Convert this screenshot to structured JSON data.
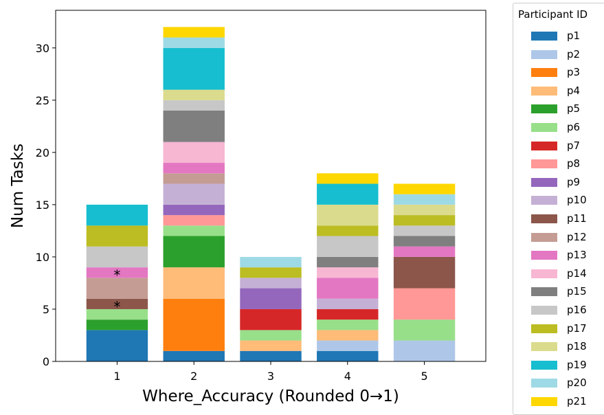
{
  "chart_data": {
    "type": "bar",
    "stacked": true,
    "xlabel": "Where_Accuracy (Rounded 0→1)",
    "ylabel": "Num Tasks",
    "categories": [
      "1",
      "2",
      "3",
      "4",
      "5"
    ],
    "ylim": [
      0,
      33.6
    ],
    "yticks": [
      0,
      5,
      10,
      15,
      20,
      25,
      30
    ],
    "legend_title": "Participant ID",
    "legend_position": "outside-right",
    "grid": false,
    "series": [
      {
        "name": "p1",
        "color": "#1f77b4",
        "values": [
          3,
          1,
          1,
          1,
          0
        ]
      },
      {
        "name": "p2",
        "color": "#aec7e8",
        "values": [
          0,
          0,
          0,
          1,
          2
        ]
      },
      {
        "name": "p3",
        "color": "#ff7f0e",
        "values": [
          0,
          5,
          0,
          0,
          0
        ]
      },
      {
        "name": "p4",
        "color": "#ffbb78",
        "values": [
          0,
          3,
          1,
          1,
          0
        ]
      },
      {
        "name": "p5",
        "color": "#2ca02c",
        "values": [
          1,
          3,
          0,
          0,
          0
        ]
      },
      {
        "name": "p6",
        "color": "#98df8a",
        "values": [
          1,
          1,
          1,
          1,
          2
        ]
      },
      {
        "name": "p7",
        "color": "#d62728",
        "values": [
          0,
          0,
          2,
          1,
          0
        ]
      },
      {
        "name": "p8",
        "color": "#ff9896",
        "values": [
          0,
          1,
          0,
          0,
          3
        ]
      },
      {
        "name": "p9",
        "color": "#9467bd",
        "values": [
          0,
          1,
          2,
          0,
          0
        ]
      },
      {
        "name": "p10",
        "color": "#c5b0d5",
        "values": [
          0,
          2,
          1,
          1,
          0
        ]
      },
      {
        "name": "p11",
        "color": "#8c564b",
        "values": [
          1,
          0,
          0,
          0,
          3
        ]
      },
      {
        "name": "p12",
        "color": "#c49c94",
        "values": [
          2,
          1,
          0,
          0,
          0
        ]
      },
      {
        "name": "p13",
        "color": "#e377c2",
        "values": [
          1,
          1,
          0,
          2,
          1
        ]
      },
      {
        "name": "p14",
        "color": "#f7b6d2",
        "values": [
          0,
          2,
          0,
          1,
          0
        ]
      },
      {
        "name": "p15",
        "color": "#7f7f7f",
        "values": [
          0,
          3,
          0,
          1,
          1
        ]
      },
      {
        "name": "p16",
        "color": "#c7c7c7",
        "values": [
          2,
          1,
          0,
          2,
          1
        ]
      },
      {
        "name": "p17",
        "color": "#bcbd22",
        "values": [
          2,
          0,
          1,
          1,
          1
        ]
      },
      {
        "name": "p18",
        "color": "#dbdb8d",
        "values": [
          0,
          1,
          0,
          2,
          1
        ]
      },
      {
        "name": "p19",
        "color": "#17becf",
        "values": [
          2,
          4,
          0,
          2,
          0
        ]
      },
      {
        "name": "p20",
        "color": "#9edae5",
        "values": [
          0,
          1,
          1,
          0,
          1
        ]
      },
      {
        "name": "p21",
        "color": "#ffd700",
        "values": [
          0,
          1,
          0,
          1,
          1
        ]
      }
    ],
    "annotations": [
      {
        "text": "*",
        "category": "1",
        "series": "p13"
      },
      {
        "text": "*",
        "category": "1",
        "series": "p11"
      }
    ]
  }
}
